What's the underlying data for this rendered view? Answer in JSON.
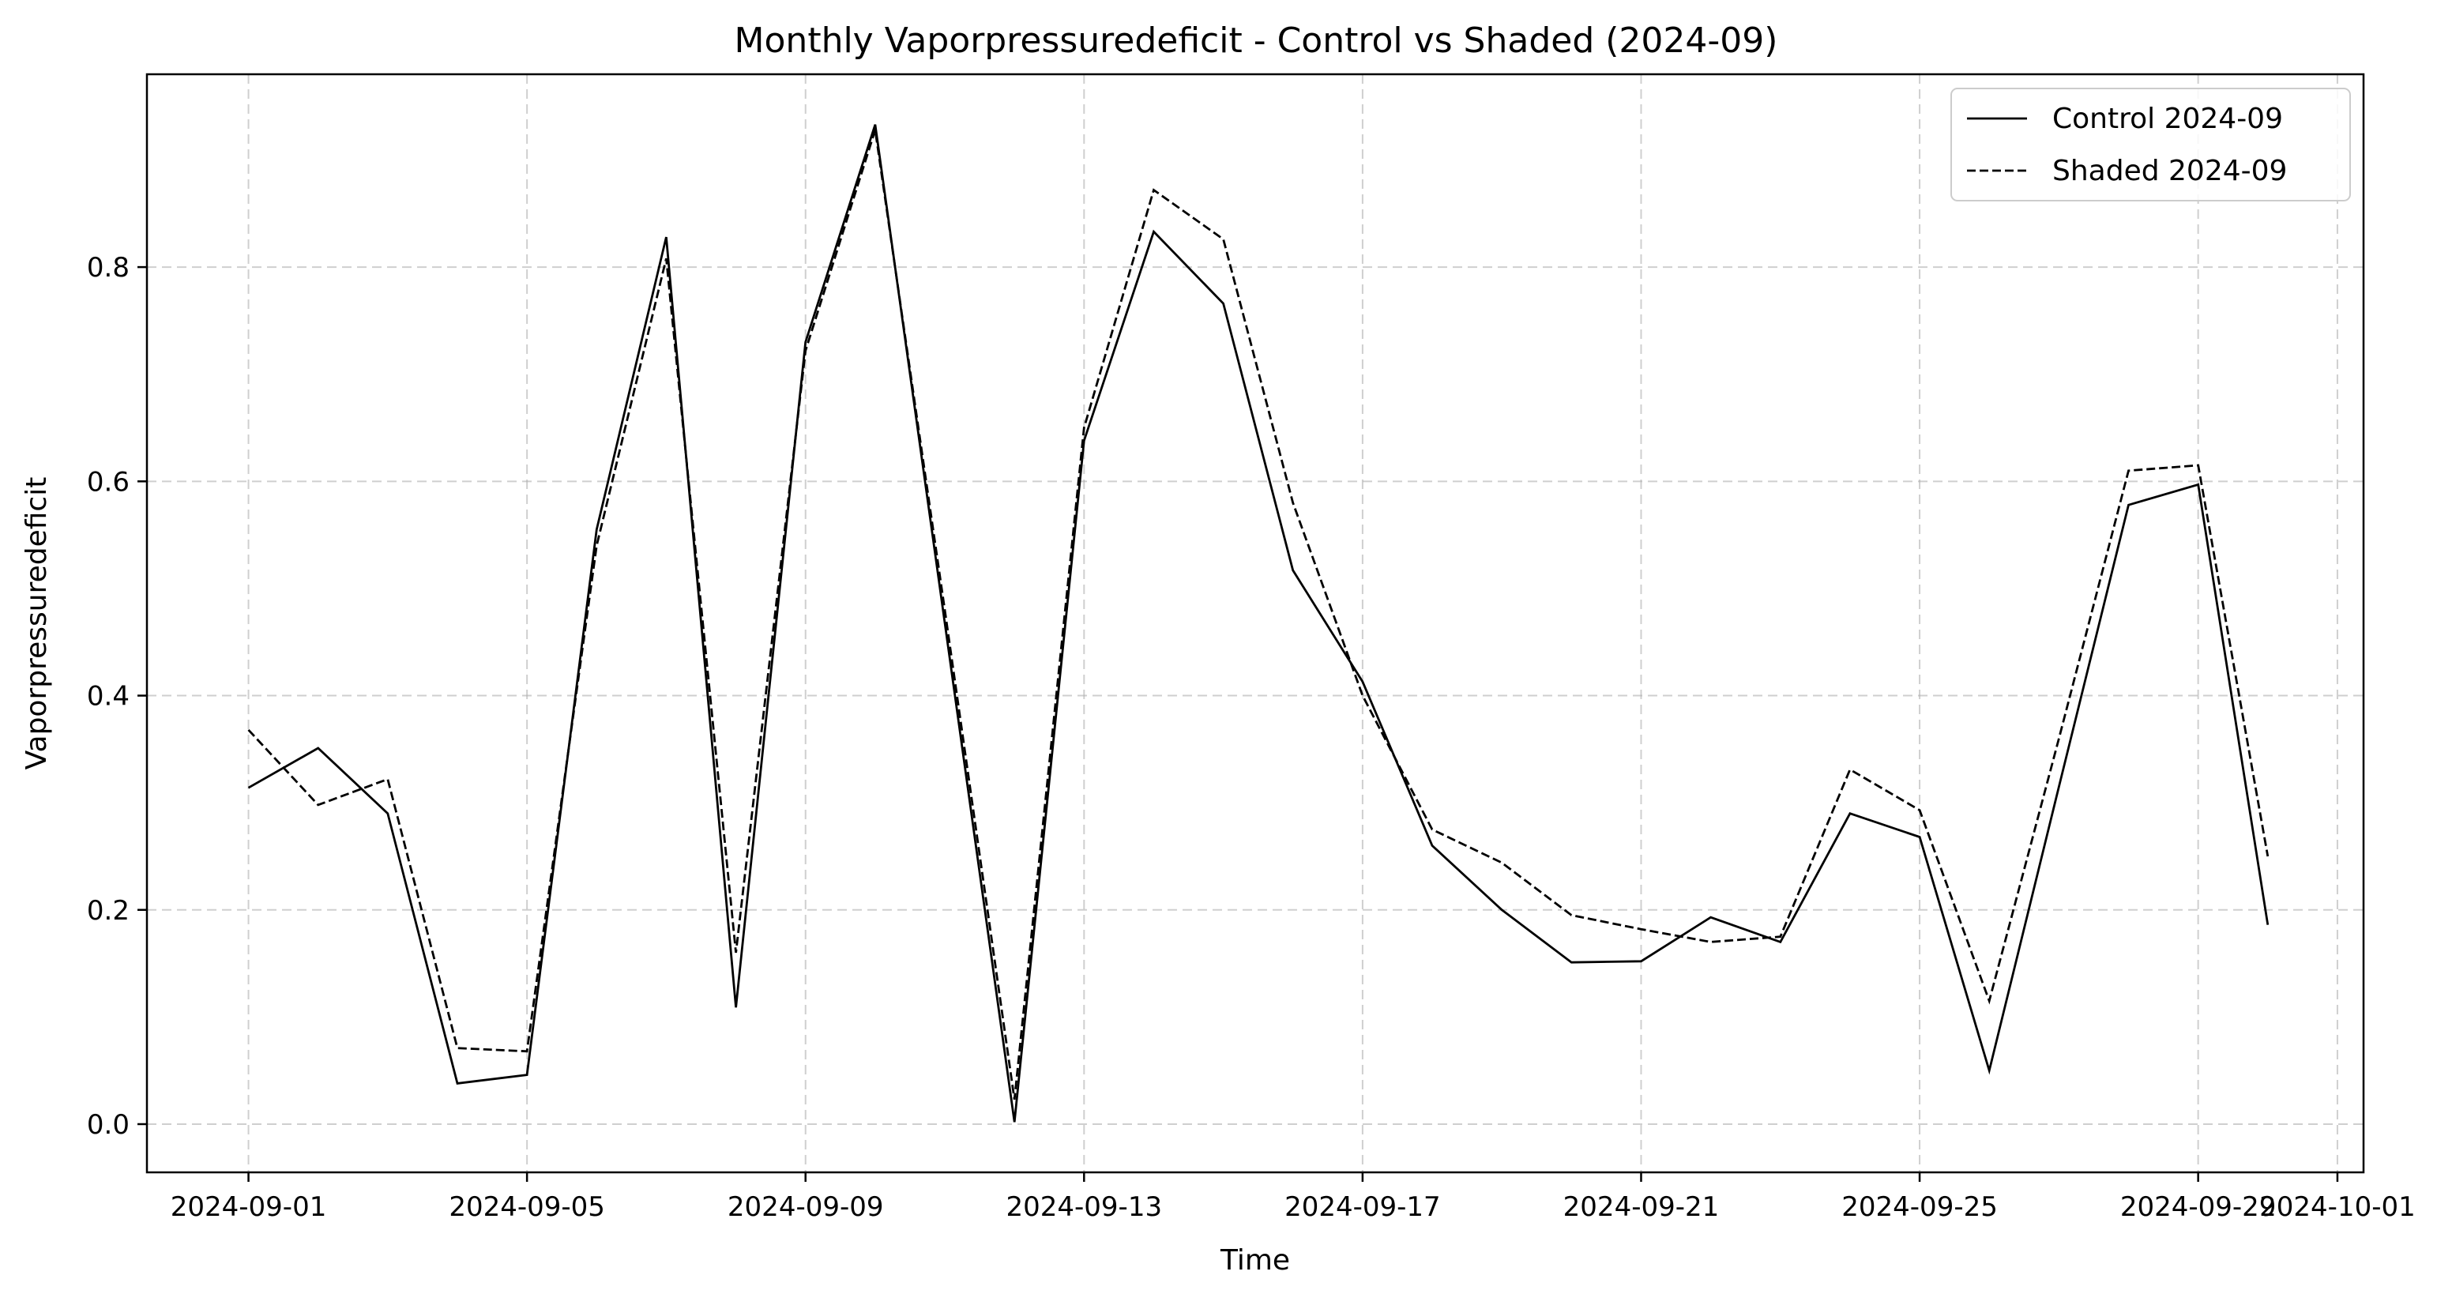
{
  "chart_data": {
    "type": "line",
    "title": "Monthly Vaporpressuredeficit - Control vs Shaded (2024-09)",
    "xlabel": "Time",
    "ylabel": "Vaporpressuredeficit",
    "x_type": "date",
    "x": [
      "2024-09-01",
      "2024-09-02",
      "2024-09-03",
      "2024-09-04",
      "2024-09-05",
      "2024-09-06",
      "2024-09-07",
      "2024-09-08",
      "2024-09-09",
      "2024-09-10",
      "2024-09-11",
      "2024-09-12",
      "2024-09-13",
      "2024-09-14",
      "2024-09-15",
      "2024-09-16",
      "2024-09-17",
      "2024-09-18",
      "2024-09-19",
      "2024-09-20",
      "2024-09-21",
      "2024-09-22",
      "2024-09-23",
      "2024-09-24",
      "2024-09-25",
      "2024-09-26",
      "2024-09-27",
      "2024-09-28",
      "2024-09-29",
      "2024-09-30"
    ],
    "series": [
      {
        "name": "Control 2024-09",
        "style": "solid",
        "color": "#000000",
        "values": [
          0.314,
          0.351,
          0.29,
          0.038,
          0.046,
          0.555,
          0.828,
          0.109,
          0.73,
          0.933,
          0.468,
          0.002,
          0.638,
          0.833,
          0.766,
          0.517,
          0.413,
          0.26,
          0.2,
          0.151,
          0.152,
          0.193,
          0.17,
          0.29,
          0.268,
          0.05,
          0.315,
          0.578,
          0.597,
          0.186
        ]
      },
      {
        "name": "Shaded 2024-09",
        "style": "dashed",
        "color": "#000000",
        "values": [
          0.368,
          0.298,
          0.322,
          0.071,
          0.068,
          0.54,
          0.808,
          0.16,
          0.722,
          0.928,
          0.48,
          0.023,
          0.65,
          0.872,
          0.826,
          0.58,
          0.4,
          0.275,
          0.244,
          0.195,
          0.182,
          0.17,
          0.175,
          0.331,
          0.293,
          0.115,
          0.36,
          0.61,
          0.615,
          0.25
        ]
      }
    ],
    "x_ticks": [
      "2024-09-01",
      "2024-09-05",
      "2024-09-09",
      "2024-09-13",
      "2024-09-17",
      "2024-09-21",
      "2024-09-25",
      "2024-09-29",
      "2024-10-01"
    ],
    "y_ticks": [
      "0.0",
      "0.2",
      "0.4",
      "0.6",
      "0.8"
    ],
    "xlim": [
      "2024-08-30T13:00",
      "2024-10-01T09:00"
    ],
    "ylim": [
      -0.045,
      0.98
    ],
    "grid": true,
    "legend_position": "top-right"
  }
}
